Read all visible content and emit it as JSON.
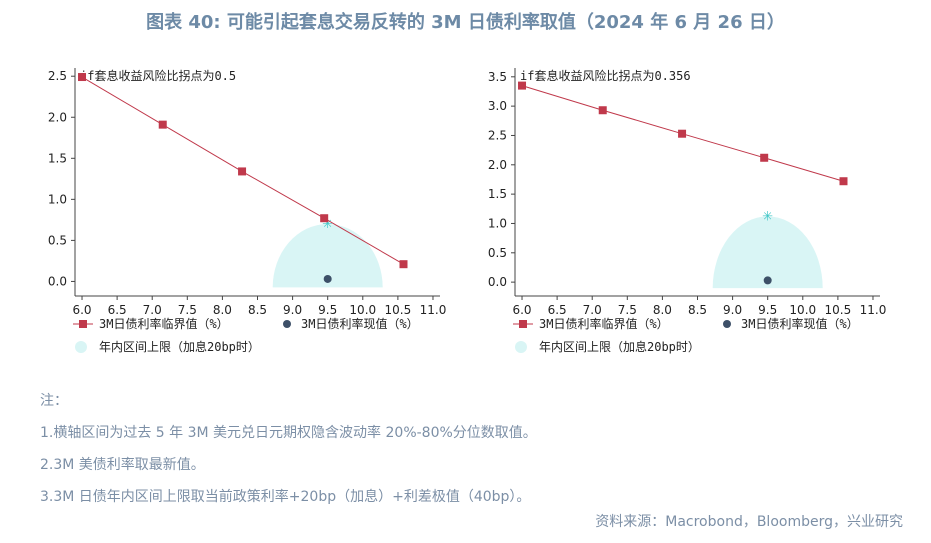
{
  "title": "图表 40: 可能引起套息交易反转的 3M 日债利率取值（2024 年 6 月 26 日）",
  "chart_data": [
    {
      "type": "line",
      "annotation": "if套息收益风险比拐点为0.5",
      "xlim": [
        5.9,
        11.1
      ],
      "xticks": [
        "6.0",
        "6.5",
        "7.0",
        "7.5",
        "8.0",
        "8.5",
        "9.0",
        "9.5",
        "10.0",
        "10.5",
        "11.0"
      ],
      "ylim": [
        -0.08,
        2.6
      ],
      "yticks": [
        "0.0",
        "0.5",
        "1.0",
        "1.5",
        "2.0",
        "2.5"
      ],
      "series": [
        {
          "name": "3M日债利率临界值（%）",
          "color": "#c0394b",
          "x": [
            6.0,
            7.15,
            8.28,
            9.45,
            10.58
          ],
          "y": [
            2.49,
            1.91,
            1.34,
            0.77,
            0.21
          ]
        },
        {
          "name": "3M日债利率现值（%）",
          "color": "#3d5068",
          "x": [
            9.5
          ],
          "y": [
            0.03
          ]
        }
      ],
      "region": {
        "name": "年内区间上限（加息20bp时）",
        "color": "#d9f5f5",
        "center_x": 9.5,
        "peak_y": 0.7
      }
    },
    {
      "type": "line",
      "annotation": "if套息收益风险比拐点为0.356",
      "xlim": [
        5.9,
        11.1
      ],
      "xticks": [
        "6.0",
        "6.5",
        "7.0",
        "7.5",
        "8.0",
        "8.5",
        "9.0",
        "9.5",
        "10.0",
        "10.5",
        "11.0"
      ],
      "ylim": [
        -0.1,
        3.65
      ],
      "yticks": [
        "0.0",
        "0.5",
        "1.0",
        "1.5",
        "2.0",
        "2.5",
        "3.0",
        "3.5"
      ],
      "series": [
        {
          "name": "3M日债利率临界值（%）",
          "color": "#c0394b",
          "x": [
            6.0,
            7.15,
            8.28,
            9.45,
            10.58
          ],
          "y": [
            3.35,
            2.93,
            2.53,
            2.12,
            1.72
          ]
        },
        {
          "name": "3M日债利率现值（%）",
          "color": "#3d5068",
          "x": [
            9.5
          ],
          "y": [
            0.03
          ]
        }
      ],
      "region": {
        "name": "年内区间上限（加息20bp时）",
        "color": "#d9f5f5",
        "center_x": 9.5,
        "peak_y": 1.12
      }
    }
  ],
  "notes": {
    "header": "注：",
    "lines": [
      "1.横轴区间为过去 5 年 3M 美元兑日元期权隐含波动率 20%-80%分位数取值。",
      "2.3M 美债利率取最新值。",
      "3.3M 日债年内区间上限取当前政策利率+20bp（加息）+利差极值（40bp）。"
    ]
  },
  "source": "资料来源：Macrobond，Bloomberg，兴业研究"
}
